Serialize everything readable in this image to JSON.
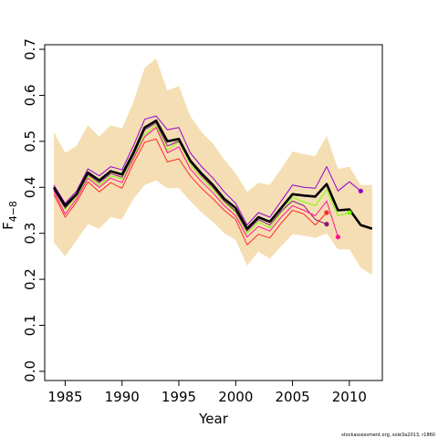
{
  "chart_data": {
    "type": "line",
    "xlabel": "Year",
    "ylabel": "F",
    "ylabel_subscript": "4−8",
    "xlim": [
      1983.2,
      2012.9
    ],
    "ylim": [
      -0.02,
      0.71
    ],
    "x_ticks": [
      1985,
      1990,
      1995,
      2000,
      2005,
      2010
    ],
    "y_ticks": [
      0.0,
      0.1,
      0.2,
      0.3,
      0.4,
      0.5,
      0.6,
      0.7
    ],
    "y_tick_labels": [
      "0.0",
      "0.1",
      "0.2",
      "0.3",
      "0.4",
      "0.5",
      "0.6",
      "0.7"
    ],
    "grid": false,
    "band": {
      "color": "#f5deb3",
      "x": [
        1984,
        1985,
        1986,
        1987,
        1988,
        1989,
        1990,
        1991,
        1992,
        1993,
        1994,
        1995,
        1996,
        1997,
        1998,
        1999,
        2000,
        2001,
        2002,
        2003,
        2004,
        2005,
        2006,
        2007,
        2008,
        2009,
        2010,
        2011,
        2012
      ],
      "upper": [
        0.52,
        0.475,
        0.49,
        0.535,
        0.51,
        0.535,
        0.528,
        0.585,
        0.66,
        0.68,
        0.61,
        0.62,
        0.555,
        0.52,
        0.495,
        0.46,
        0.43,
        0.39,
        0.41,
        0.405,
        0.44,
        0.478,
        0.472,
        0.468,
        0.512,
        0.44,
        0.445,
        0.405,
        0.405
      ],
      "lower": [
        0.28,
        0.25,
        0.285,
        0.32,
        0.31,
        0.335,
        0.33,
        0.375,
        0.405,
        0.415,
        0.398,
        0.398,
        0.37,
        0.345,
        0.325,
        0.3,
        0.285,
        0.23,
        0.26,
        0.245,
        0.272,
        0.298,
        0.295,
        0.29,
        0.3,
        0.265,
        0.265,
        0.225,
        0.21
      ]
    },
    "series": [
      {
        "color": "#000000",
        "width": 2.6,
        "end_point": false,
        "x": [
          1984,
          1985,
          1986,
          1987,
          1988,
          1989,
          1990,
          1991,
          1992,
          1993,
          1994,
          1995,
          1996,
          1997,
          1998,
          1999,
          2000,
          2001,
          2002,
          2003,
          2004,
          2005,
          2006,
          2007,
          2008,
          2009,
          2010,
          2011,
          2012
        ],
        "y": [
          0.4,
          0.36,
          0.385,
          0.432,
          0.415,
          0.435,
          0.428,
          0.475,
          0.53,
          0.545,
          0.5,
          0.505,
          0.458,
          0.43,
          0.405,
          0.375,
          0.355,
          0.31,
          0.335,
          0.325,
          0.355,
          0.385,
          0.382,
          0.38,
          0.407,
          0.35,
          0.352,
          0.318,
          0.31
        ]
      },
      {
        "color": "#9400d3",
        "width": 1,
        "end_point": true,
        "x": [
          1984,
          1985,
          1986,
          1987,
          1988,
          1989,
          1990,
          1991,
          1992,
          1993,
          1994,
          1995,
          1996,
          1997,
          1998,
          1999,
          2000,
          2001,
          2002,
          2003,
          2004,
          2005,
          2006,
          2007,
          2008,
          2009,
          2010,
          2011
        ],
        "y": [
          0.405,
          0.365,
          0.392,
          0.44,
          0.425,
          0.445,
          0.438,
          0.49,
          0.548,
          0.555,
          0.525,
          0.53,
          0.475,
          0.445,
          0.42,
          0.39,
          0.365,
          0.318,
          0.345,
          0.335,
          0.37,
          0.405,
          0.4,
          0.398,
          0.445,
          0.392,
          0.412,
          0.392
        ]
      },
      {
        "color": "#7cfc00",
        "width": 1,
        "end_point": true,
        "x": [
          1984,
          1985,
          1986,
          1987,
          1988,
          1989,
          1990,
          1991,
          1992,
          1993,
          1994,
          1995,
          1996,
          1997,
          1998,
          1999,
          2000,
          2001,
          2002,
          2003,
          2004,
          2005,
          2006,
          2007,
          2008,
          2009,
          2010
        ],
        "y": [
          0.398,
          0.352,
          0.38,
          0.425,
          0.405,
          0.425,
          0.418,
          0.465,
          0.515,
          0.535,
          0.48,
          0.5,
          0.45,
          0.42,
          0.395,
          0.368,
          0.345,
          0.3,
          0.325,
          0.312,
          0.345,
          0.378,
          0.368,
          0.36,
          0.395,
          0.338,
          0.345
        ]
      },
      {
        "color": "#8b1a7a",
        "width": 1,
        "end_point": true,
        "x": [
          1984,
          1985,
          1986,
          1987,
          1988,
          1989,
          1990,
          1991,
          1992,
          1993,
          1994,
          1995,
          1996,
          1997,
          1998,
          1999,
          2000,
          2001,
          2002,
          2003,
          2004,
          2005,
          2006,
          2007,
          2008
        ],
        "y": [
          0.395,
          0.355,
          0.383,
          0.428,
          0.41,
          0.43,
          0.422,
          0.47,
          0.525,
          0.54,
          0.49,
          0.5,
          0.455,
          0.425,
          0.4,
          0.37,
          0.348,
          0.305,
          0.33,
          0.318,
          0.348,
          0.37,
          0.36,
          0.33,
          0.32
        ]
      },
      {
        "color": "#ff1493",
        "width": 1,
        "end_point": true,
        "x": [
          1984,
          1985,
          1986,
          1987,
          1988,
          1989,
          1990,
          1991,
          1992,
          1993,
          1994,
          1995,
          1996,
          1997,
          1998,
          1999,
          2000,
          2001,
          2002,
          2003,
          2004,
          2005,
          2006,
          2007,
          2008,
          2009
        ],
        "y": [
          0.392,
          0.342,
          0.375,
          0.42,
          0.4,
          0.42,
          0.41,
          0.462,
          0.51,
          0.53,
          0.475,
          0.488,
          0.44,
          0.412,
          0.388,
          0.36,
          0.338,
          0.292,
          0.315,
          0.305,
          0.335,
          0.36,
          0.35,
          0.338,
          0.37,
          0.292
        ]
      },
      {
        "color": "#ff2a2a",
        "width": 1,
        "end_point": true,
        "x": [
          1984,
          1985,
          1986,
          1987,
          1988,
          1989,
          1990,
          1991,
          1992,
          1993,
          1994,
          1995,
          1996,
          1997,
          1998,
          1999,
          2000,
          2001,
          2002,
          2003,
          2004,
          2005,
          2006,
          2007,
          2008
        ],
        "y": [
          0.385,
          0.335,
          0.368,
          0.412,
          0.39,
          0.41,
          0.398,
          0.452,
          0.498,
          0.505,
          0.455,
          0.462,
          0.425,
          0.398,
          0.375,
          0.35,
          0.33,
          0.275,
          0.298,
          0.29,
          0.322,
          0.35,
          0.342,
          0.318,
          0.345
        ]
      }
    ]
  },
  "footnote": "stockassessment.org, sole3a2013, r1860"
}
